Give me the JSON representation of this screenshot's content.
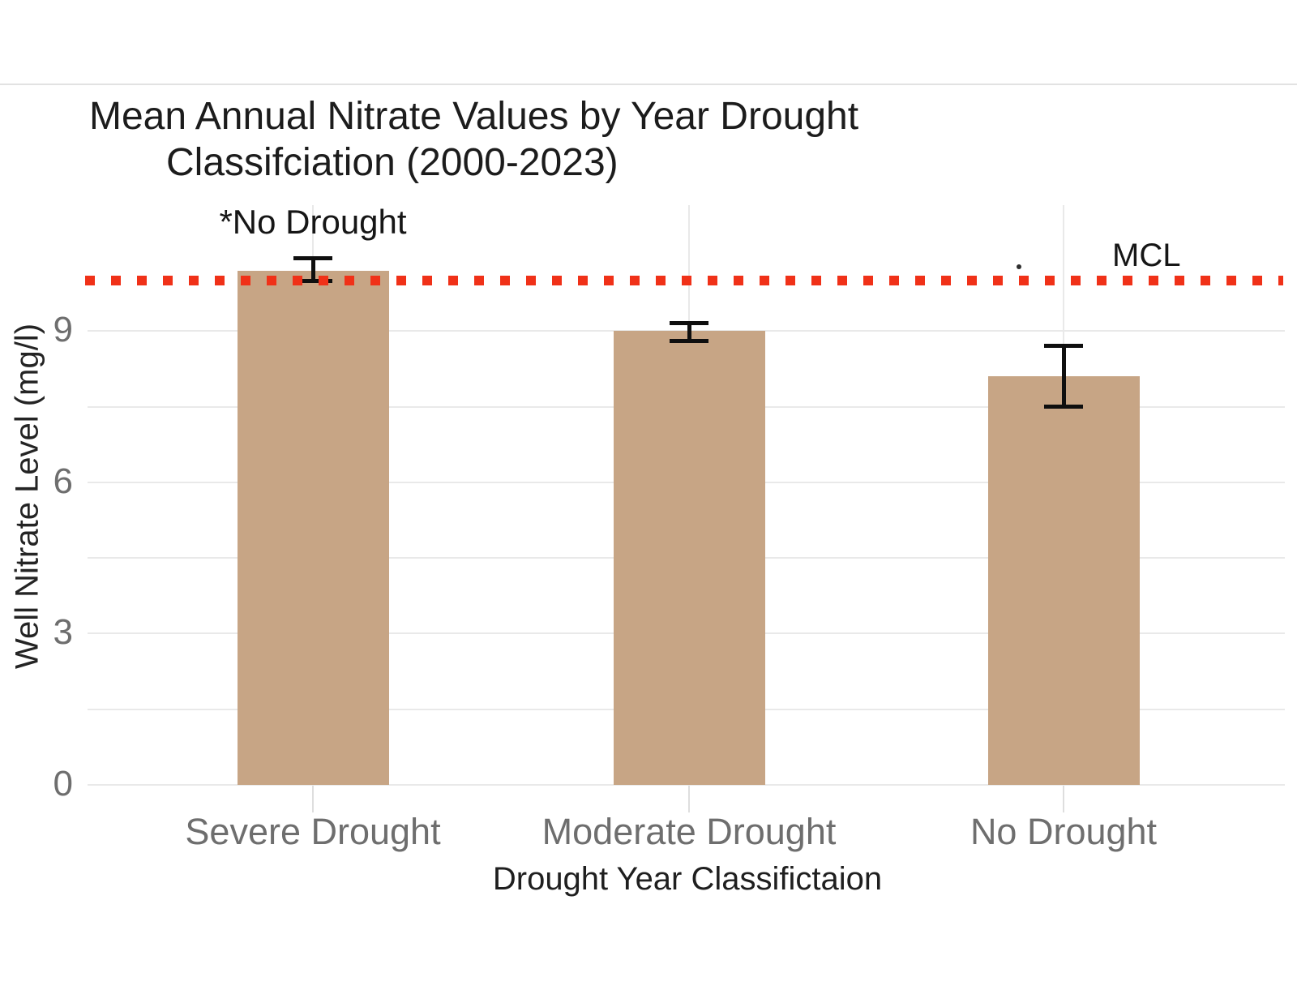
{
  "chart_data": {
    "type": "bar",
    "title": "Mean Annual Nitrate Values by Year Drought Classifciation (2000-2023)",
    "title_lines": [
      "Mean Annual Nitrate Values by Year Drought",
      "Classifciation (2000-2023)"
    ],
    "xlabel": "Drought Year Classifictaion",
    "ylabel": "Well Nitrate Level (mg/l)",
    "categories": [
      "Severe Drought",
      "Moderate Drought",
      "No Drought"
    ],
    "values": [
      10.2,
      9.0,
      8.1
    ],
    "error_high": [
      10.45,
      9.15,
      8.7
    ],
    "error_low": [
      10.0,
      8.8,
      7.5
    ],
    "yticks": [
      0,
      3,
      6,
      9
    ],
    "ylim": [
      0,
      11.5
    ],
    "gridline_step": 1.5,
    "grid": "on",
    "legend": "none",
    "reference_line": {
      "label": "MCL",
      "value": 10,
      "style": "dotted-square",
      "color": "#f03118"
    },
    "bar_annotation": {
      "text": "*No Drought",
      "bar": "Severe Drought"
    },
    "colors": {
      "bar": "#c7a585",
      "reference": "#f03118",
      "gridline": "#e9e9e9",
      "tick_text": "#6e6e6e",
      "title_text": "#1c1c1c",
      "error_bar": "#0f0f0f",
      "background": "#ffffff"
    }
  }
}
